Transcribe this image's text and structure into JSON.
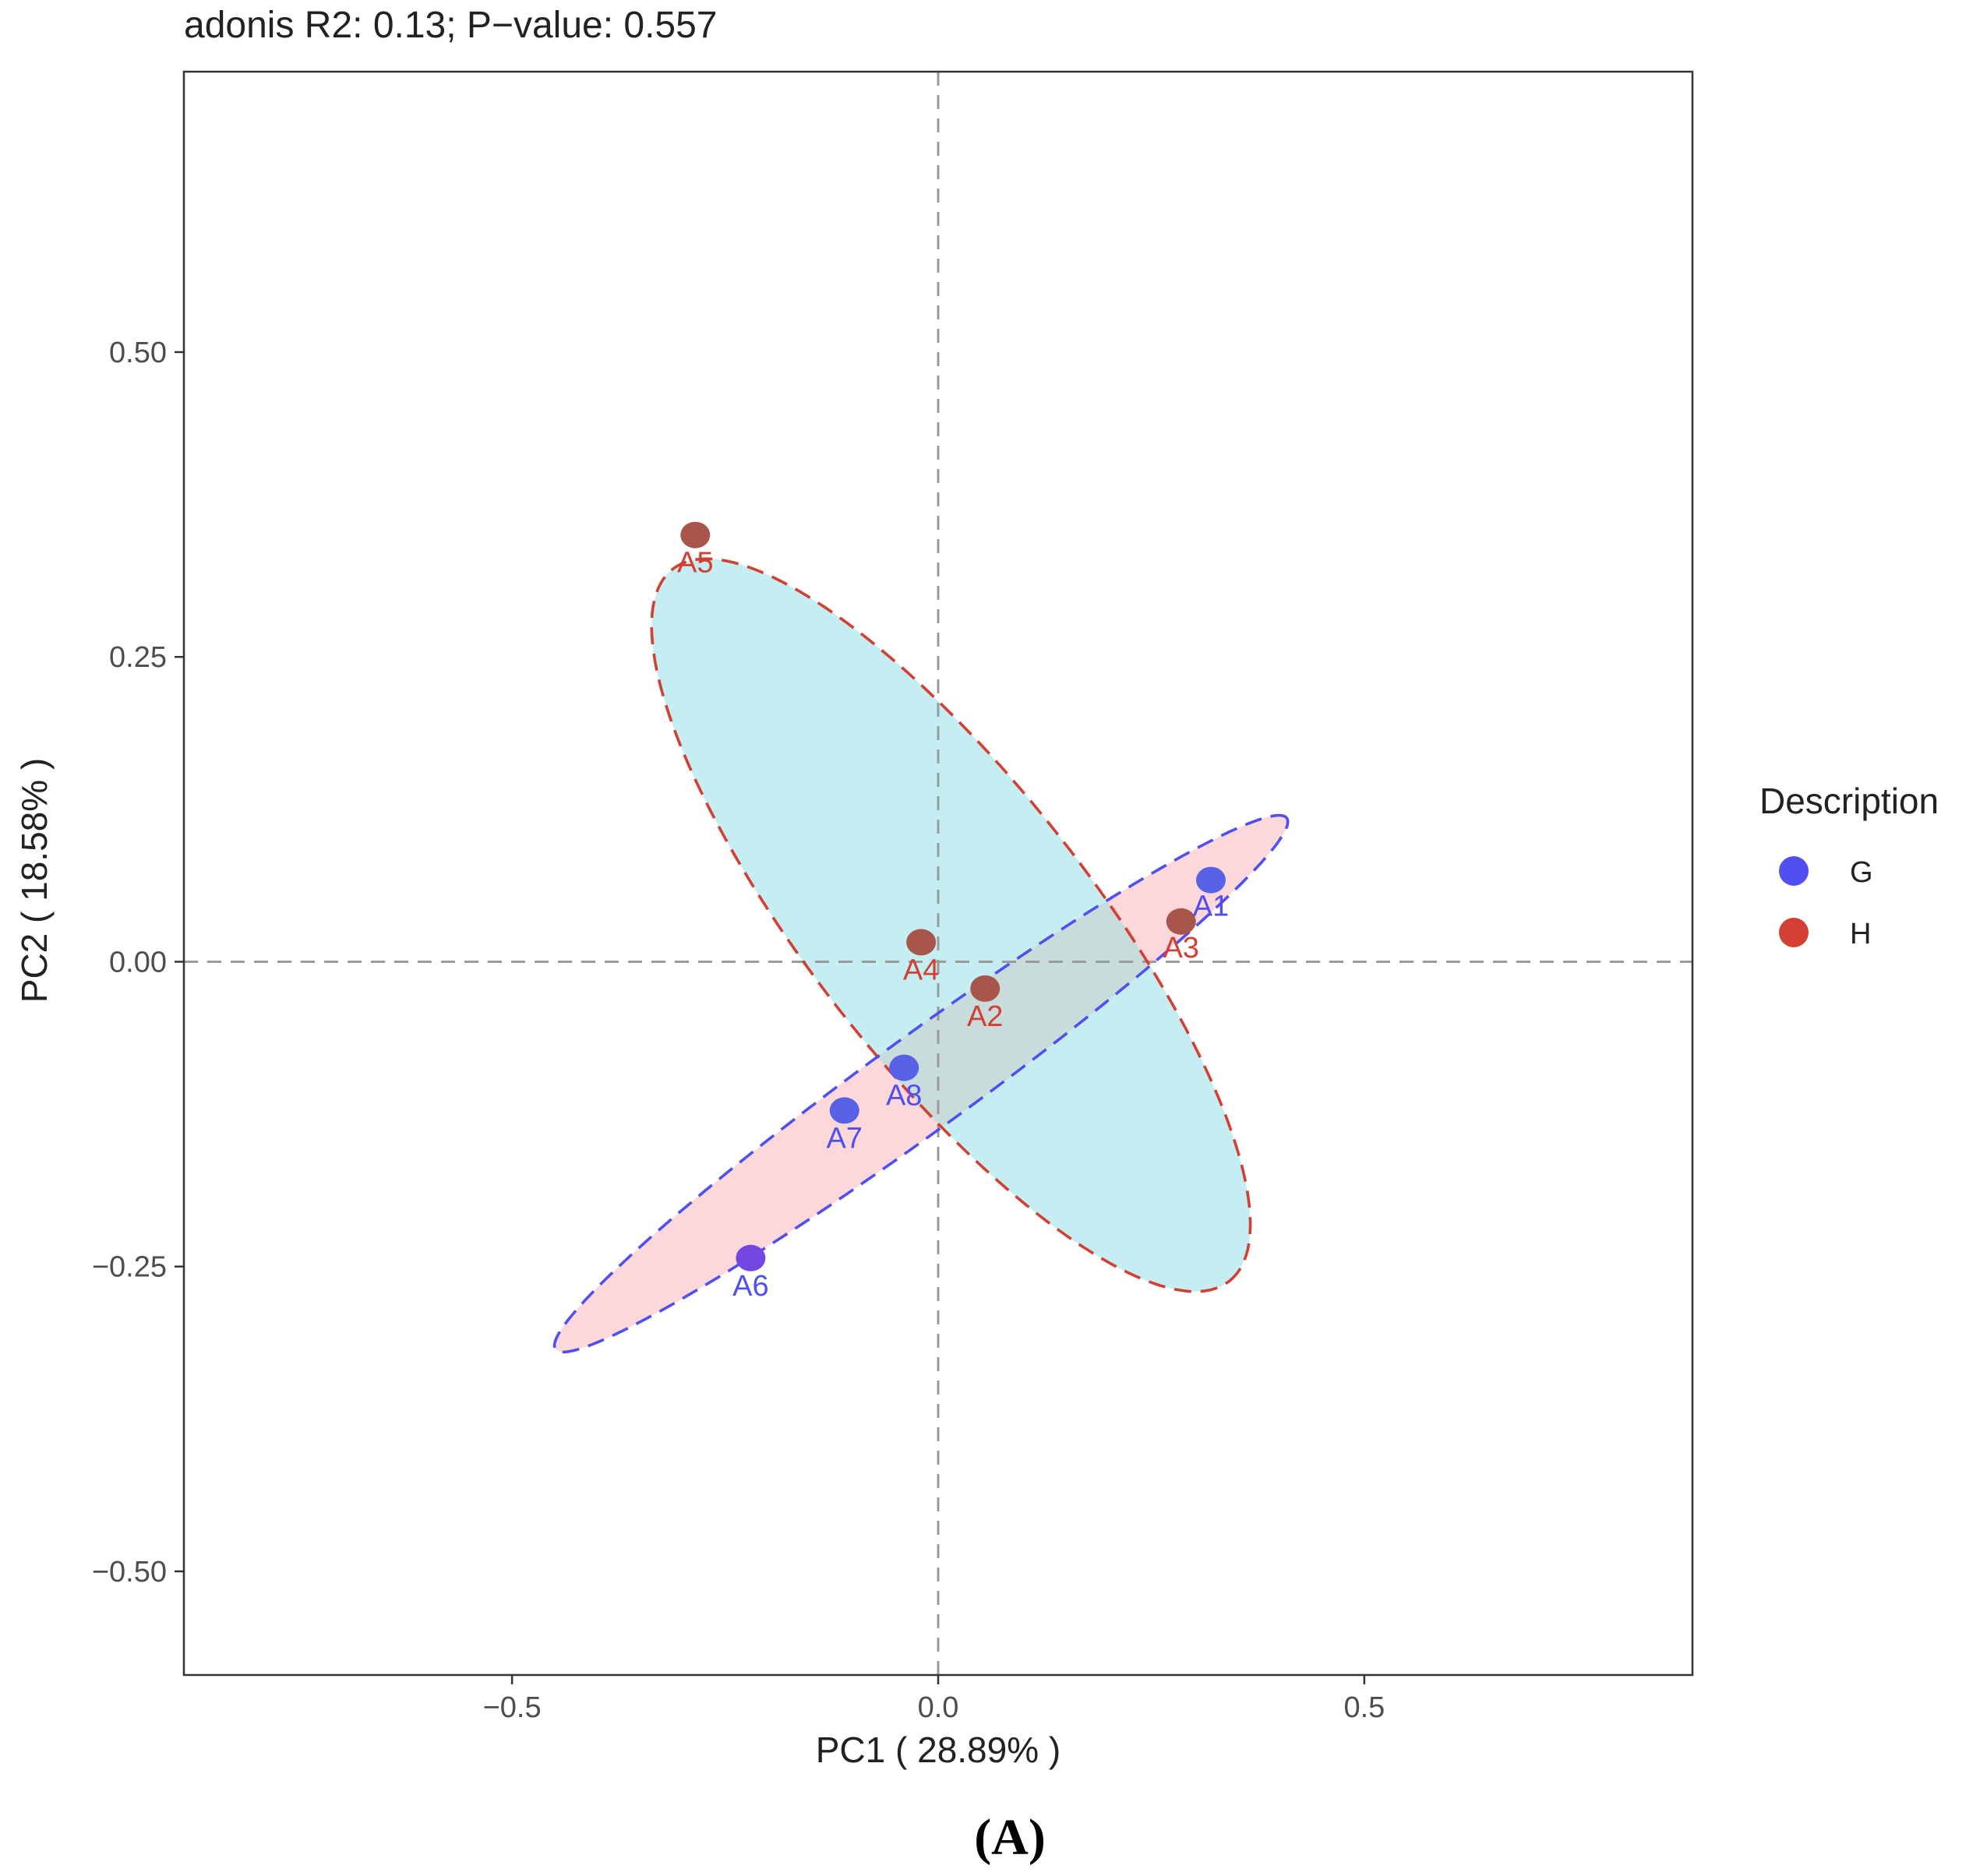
{
  "chart_data": {
    "type": "scatter",
    "title": "adonis R2: 0.13; P−value: 0.557",
    "xlabel": "PC1 (  28.89% )",
    "ylabel": "PC2 ( 18.58% )",
    "xlim": [
      -0.885,
      0.885
    ],
    "ylim": [
      -0.585,
      0.73
    ],
    "x_ticks": [
      {
        "value": -0.5,
        "label": "−0.5"
      },
      {
        "value": 0.0,
        "label": "0.0"
      },
      {
        "value": 0.5,
        "label": "0.5"
      }
    ],
    "y_ticks": [
      {
        "value": 0.5,
        "label": "0.50"
      },
      {
        "value": 0.25,
        "label": "0.25"
      },
      {
        "value": 0.0,
        "label": "0.00"
      },
      {
        "value": -0.25,
        "label": "−0.25"
      },
      {
        "value": -0.5,
        "label": "−0.50"
      }
    ],
    "reference_lines": {
      "x": 0,
      "y": 0
    },
    "legend": {
      "title": "Description",
      "position": "right",
      "entries": [
        {
          "label": "G",
          "color": "#5050f0"
        },
        {
          "label": "H",
          "color": "#d33f33"
        }
      ]
    },
    "series": [
      {
        "name": "G",
        "color": "#5050f0",
        "points": [
          {
            "label": "A1",
            "x": 0.32,
            "y": 0.067
          },
          {
            "label": "A6",
            "x": -0.22,
            "y": -0.243
          },
          {
            "label": "A7",
            "x": -0.11,
            "y": -0.122
          },
          {
            "label": "A8",
            "x": -0.04,
            "y": -0.087
          }
        ]
      },
      {
        "name": "H",
        "color": "#d33f33",
        "points": [
          {
            "label": "A2",
            "x": 0.055,
            "y": -0.022
          },
          {
            "label": "A3",
            "x": 0.285,
            "y": 0.033
          },
          {
            "label": "A4",
            "x": -0.02,
            "y": 0.016
          },
          {
            "label": "A5",
            "x": -0.285,
            "y": 0.35
          }
        ]
      }
    ],
    "ellipses": [
      {
        "group": "H",
        "center": [
          0.015,
          0.03
        ],
        "semi_major": 1.0,
        "semi_minor": 0.31,
        "angle_deg": -52,
        "fill": "#c4eef2",
        "stroke": "#d33f33"
      },
      {
        "group": "G",
        "center": [
          -0.02,
          -0.1
        ],
        "semi_major": 1.0,
        "semi_minor": 0.105,
        "angle_deg": 36,
        "fill": "#fcd8da",
        "stroke": "#5050f0"
      }
    ],
    "grid": false
  },
  "figure": {
    "panel_label": "(A)"
  }
}
